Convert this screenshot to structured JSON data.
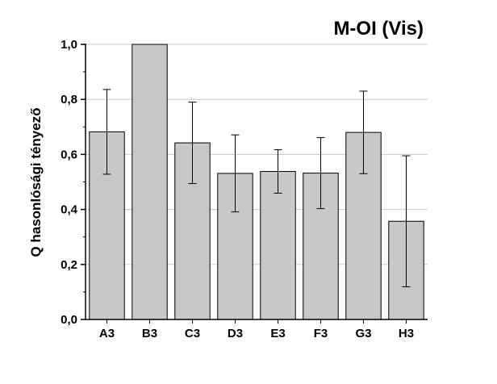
{
  "chart_data": {
    "type": "bar",
    "title": "M-OI (Vis)",
    "xlabel": "",
    "ylabel": "Q hasonlósági tényező",
    "categories": [
      "A3",
      "B3",
      "C3",
      "D3",
      "E3",
      "F3",
      "G3",
      "H3"
    ],
    "values": [
      0.682,
      1.0,
      0.642,
      0.531,
      0.538,
      0.532,
      0.68,
      0.357
    ],
    "errors": [
      0.154,
      0.0,
      0.148,
      0.14,
      0.079,
      0.129,
      0.15,
      0.238
    ],
    "ylim": [
      0.0,
      1.0
    ],
    "yticks": [
      0.0,
      0.2,
      0.4,
      0.6,
      0.8,
      1.0
    ],
    "ytick_labels": [
      "0,0",
      "0,2",
      "0,4",
      "0,6",
      "0,8",
      "1,0"
    ],
    "grid": true,
    "bar_color": "#c8c8c8",
    "grid_color": "#c8c8c8"
  }
}
